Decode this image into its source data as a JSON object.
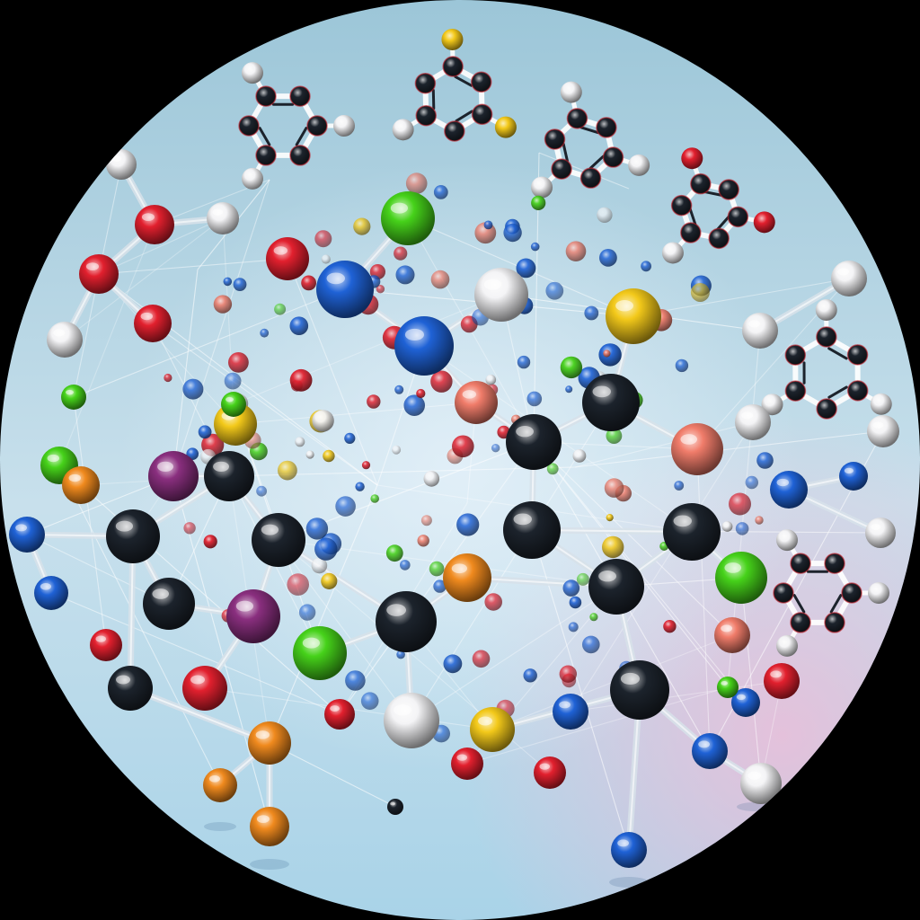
{
  "image": {
    "subject": "",
    "frame_shape": "circle",
    "palette": {
      "corner": "#000000",
      "bg_top": "#9cc6d8",
      "bg_mid": "#c8e0ec",
      "bg_bottom": "#a9d3e8",
      "bg_glow_pink": "#f3b9d6",
      "bond": "#d8e2ea",
      "wire": "#ffffff",
      "black_atom": "#1c232c",
      "blue_atom": "#1f62d6",
      "red_atom": "#e2202e",
      "green_atom": "#46d21a",
      "yellow_atom": "#f3c91a",
      "orange_atom": "#f08a1e",
      "white_atom": "#f4f4f6",
      "purple_atom": "#8a2f7f",
      "salmon_atom": "#f07c6a"
    }
  }
}
